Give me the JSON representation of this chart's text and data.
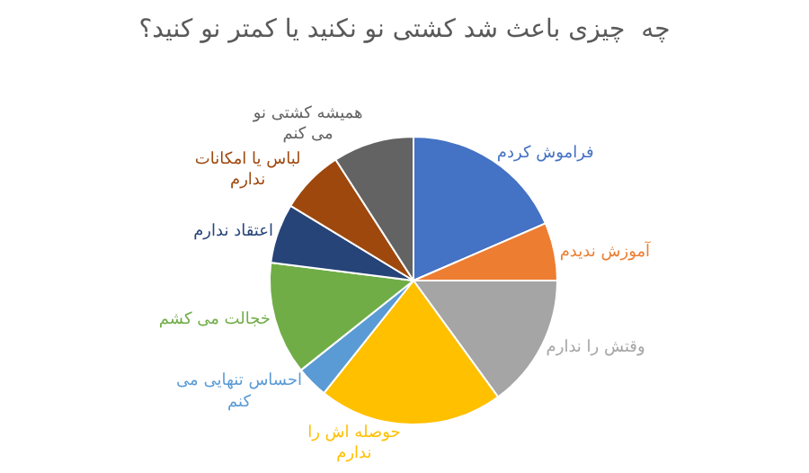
{
  "chart_data": {
    "type": "pie",
    "title": "چه  چیزی باعث شد کشتی نو نکنید یا کمتر نو کنید؟",
    "categories": [
      "فراموش کردم",
      "آموزش ندیدم",
      "وقتش را ندارم",
      "حوصله اش را\nندارم",
      "احساس تنهایی می\nکنم",
      "خجالت می کشم",
      "اعتقاد ندارم",
      "لباس یا امکانات\nندارم",
      "همیشه کشتی نو\nمی کنم"
    ],
    "values": [
      18.5,
      6.5,
      15,
      20.7,
      3.6,
      12.7,
      6.7,
      7.2,
      9.1
    ],
    "colors": [
      "#4472c4",
      "#ed7d31",
      "#a5a5a5",
      "#ffc000",
      "#5b9bd5",
      "#70ad47",
      "#264478",
      "#9e480e",
      "#636363"
    ],
    "legend": false
  }
}
